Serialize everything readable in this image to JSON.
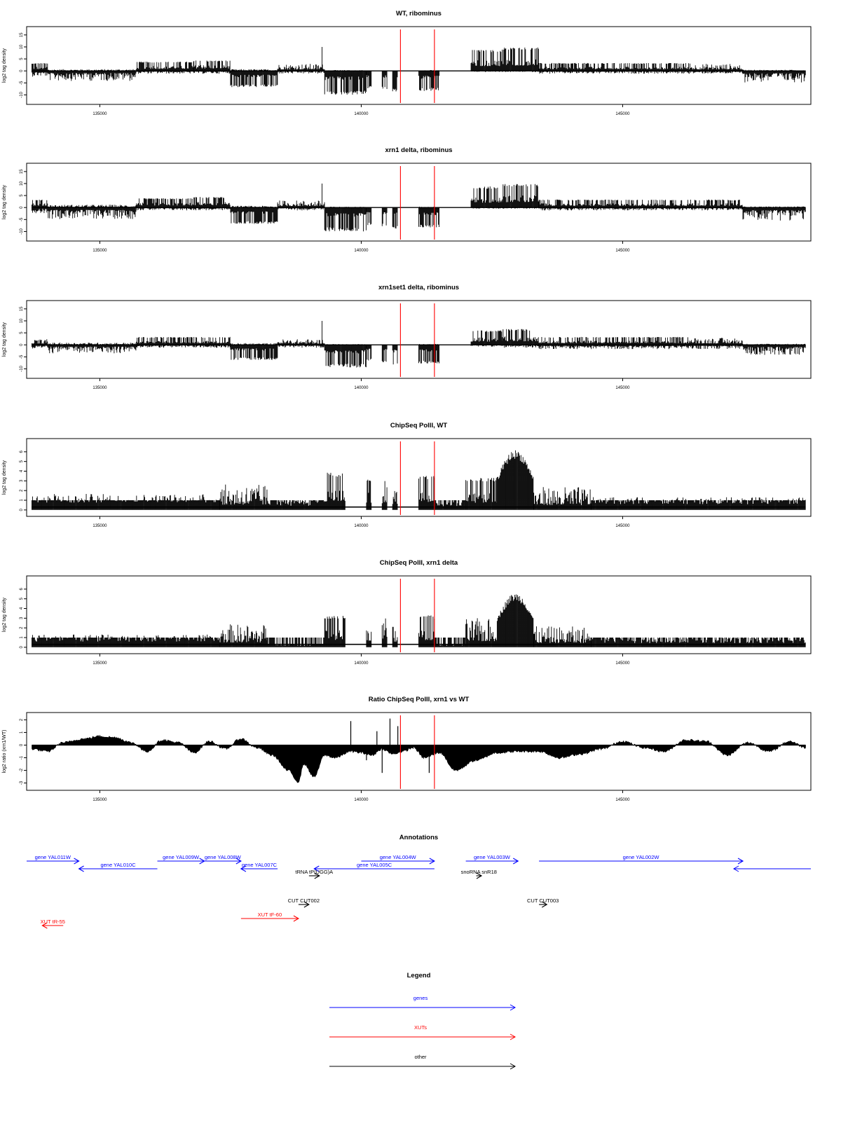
{
  "legend": {
    "title": "Legend",
    "items": [
      {
        "label": "genes",
        "color": "#0000ff"
      },
      {
        "label": "XUTs",
        "color": "#ff0000"
      },
      {
        "label": "other",
        "color": "#000000"
      }
    ]
  },
  "annotations_title": "Annotations",
  "colors": {
    "marker": "#ff0000",
    "trace": "#000000",
    "gene": "#0000ff",
    "xut": "#ff0000",
    "other": "#000000"
  },
  "chart_data": [
    {
      "type": "bar",
      "title": "WT, ribominus",
      "ylabel": "log2 tag density",
      "xticks": [
        135000,
        140000,
        145000
      ],
      "yticks": [
        -10,
        -5,
        0,
        5,
        10,
        15
      ],
      "xlim": [
        133600,
        148600
      ],
      "ylim": [
        -12.5,
        17
      ],
      "markers": [
        140750,
        141400
      ],
      "segments": [
        {
          "x": [
            133700,
            134000
          ],
          "pos": 3,
          "neg": -2
        },
        {
          "x": [
            134000,
            135700
          ],
          "pos": 0.6,
          "neg": -3.5
        },
        {
          "x": [
            135700,
            136800
          ],
          "pos": 3.5,
          "neg": -1
        },
        {
          "x": [
            136800,
            137500
          ],
          "pos": 4,
          "neg": -1
        },
        {
          "x": [
            137500,
            138400
          ],
          "pos": 0.6,
          "neg": -6.5
        },
        {
          "x": [
            138400,
            139300
          ],
          "pos": 2.5,
          "neg": -1,
          "spike": [
            139250,
            10
          ]
        },
        {
          "x": [
            139300,
            140100
          ],
          "pos": 0.3,
          "neg": -9.5
        },
        {
          "x": [
            140100,
            140200
          ],
          "pos": 0,
          "neg": -7
        },
        {
          "x": [
            140400,
            140500
          ],
          "pos": 0,
          "neg": -7.5
        },
        {
          "x": [
            140600,
            140700
          ],
          "pos": 0,
          "neg": -8.5
        },
        {
          "x": [
            141100,
            141500
          ],
          "pos": 0.3,
          "neg": -8
        },
        {
          "x": [
            142100,
            142700
          ],
          "pos": 8,
          "neg": -0.4
        },
        {
          "x": [
            142700,
            143400
          ],
          "pos": 9,
          "neg": -0.4
        },
        {
          "x": [
            143400,
            146300
          ],
          "pos": 3,
          "neg": -1
        },
        {
          "x": [
            146300,
            147300
          ],
          "pos": 2.5,
          "neg": -1
        },
        {
          "x": [
            147300,
            148500
          ],
          "pos": 0.4,
          "neg": -4
        }
      ]
    },
    {
      "type": "bar",
      "title": "xrn1 delta, ribominus",
      "ylabel": "log2 tag density",
      "xticks": [
        135000,
        140000,
        145000
      ],
      "yticks": [
        -10,
        -5,
        0,
        5,
        10,
        15
      ],
      "xlim": [
        133600,
        148600
      ],
      "ylim": [
        -12.5,
        17
      ],
      "markers": [
        140750,
        141400
      ],
      "segments": [
        {
          "x": [
            133700,
            134000
          ],
          "pos": 3,
          "neg": -2
        },
        {
          "x": [
            134000,
            135700
          ],
          "pos": 1,
          "neg": -4
        },
        {
          "x": [
            135700,
            136800
          ],
          "pos": 3.5,
          "neg": -1
        },
        {
          "x": [
            136800,
            137500
          ],
          "pos": 4,
          "neg": -1
        },
        {
          "x": [
            137500,
            138400
          ],
          "pos": 0.6,
          "neg": -6.5
        },
        {
          "x": [
            138400,
            139300
          ],
          "pos": 2.5,
          "neg": -1,
          "spike": [
            139250,
            10
          ]
        },
        {
          "x": [
            139300,
            140100
          ],
          "pos": 0.3,
          "neg": -9.5
        },
        {
          "x": [
            140100,
            140200
          ],
          "pos": 0,
          "neg": -7
        },
        {
          "x": [
            140400,
            140500
          ],
          "pos": 0,
          "neg": -7.5
        },
        {
          "x": [
            140600,
            140700
          ],
          "pos": 0,
          "neg": -8.5
        },
        {
          "x": [
            141100,
            141500
          ],
          "pos": 0.3,
          "neg": -8
        },
        {
          "x": [
            142100,
            142700
          ],
          "pos": 8,
          "neg": -0.4
        },
        {
          "x": [
            142700,
            143400
          ],
          "pos": 9,
          "neg": -0.4
        },
        {
          "x": [
            143400,
            146300
          ],
          "pos": 3,
          "neg": -1
        },
        {
          "x": [
            146300,
            147300
          ],
          "pos": 3,
          "neg": -1
        },
        {
          "x": [
            147300,
            148500
          ],
          "pos": 0.4,
          "neg": -4.5
        }
      ]
    },
    {
      "type": "bar",
      "title": "xrn1set1 delta, ribominus",
      "ylabel": "log2 tag density",
      "xticks": [
        135000,
        140000,
        145000
      ],
      "yticks": [
        -10,
        -5,
        0,
        5,
        10,
        15
      ],
      "xlim": [
        133600,
        148600
      ],
      "ylim": [
        -12.5,
        17
      ],
      "markers": [
        140750,
        141400
      ],
      "segments": [
        {
          "x": [
            133700,
            134000
          ],
          "pos": 2,
          "neg": -1.5
        },
        {
          "x": [
            134000,
            135700
          ],
          "pos": 0.8,
          "neg": -3
        },
        {
          "x": [
            135700,
            136800
          ],
          "pos": 3,
          "neg": -1
        },
        {
          "x": [
            136800,
            137500
          ],
          "pos": 3,
          "neg": -1
        },
        {
          "x": [
            137500,
            138400
          ],
          "pos": 0.6,
          "neg": -6
        },
        {
          "x": [
            138400,
            139300
          ],
          "pos": 2,
          "neg": -1,
          "spike": [
            139250,
            10
          ]
        },
        {
          "x": [
            139300,
            140100
          ],
          "pos": 0.3,
          "neg": -9
        },
        {
          "x": [
            140100,
            140200
          ],
          "pos": 0,
          "neg": -6.5
        },
        {
          "x": [
            140400,
            140500
          ],
          "pos": 0,
          "neg": -7
        },
        {
          "x": [
            140600,
            140700
          ],
          "pos": 0,
          "neg": -8
        },
        {
          "x": [
            141100,
            141500
          ],
          "pos": 0.3,
          "neg": -7.5
        },
        {
          "x": [
            142100,
            142700
          ],
          "pos": 5.5,
          "neg": -0.6
        },
        {
          "x": [
            142700,
            143400
          ],
          "pos": 6,
          "neg": -1
        },
        {
          "x": [
            143400,
            146300
          ],
          "pos": 3,
          "neg": -1.5
        },
        {
          "x": [
            146300,
            147300
          ],
          "pos": 2.5,
          "neg": -1.5
        },
        {
          "x": [
            147300,
            148500
          ],
          "pos": 0.4,
          "neg": -3.5
        }
      ]
    },
    {
      "type": "bar",
      "title": "ChipSeq PolII, WT",
      "ylabel": "log2 tag density",
      "xticks": [
        135000,
        140000,
        145000
      ],
      "yticks": [
        0,
        1,
        2,
        3,
        4,
        5,
        6
      ],
      "xlim": [
        133600,
        148600
      ],
      "ylim": [
        -0.3,
        7
      ],
      "markers": [
        140750,
        141400
      ],
      "segments": [
        {
          "x": [
            133700,
            137300
          ],
          "pos": 1.4,
          "neg": 0
        },
        {
          "x": [
            137300,
            138200
          ],
          "pos": 2.2,
          "neg": 0
        },
        {
          "x": [
            138200,
            139300
          ],
          "pos": 0.8,
          "neg": 0
        },
        {
          "x": [
            139300,
            139700
          ],
          "pos": 3.5,
          "neg": 0
        },
        {
          "x": [
            140100,
            140200
          ],
          "pos": 3,
          "neg": 0
        },
        {
          "x": [
            140400,
            140500
          ],
          "pos": 2.8,
          "neg": 0
        },
        {
          "x": [
            140600,
            140700
          ],
          "pos": 2.2,
          "neg": 0
        },
        {
          "x": [
            141100,
            141400
          ],
          "pos": 3.2,
          "neg": 0
        },
        {
          "x": [
            141400,
            142000
          ],
          "pos": 0.7,
          "neg": 0
        },
        {
          "x": [
            142000,
            142600
          ],
          "pos": 3,
          "neg": 0
        },
        {
          "x": [
            142600,
            143300
          ],
          "pos": 6.2,
          "neg": 0,
          "dome": true
        },
        {
          "x": [
            143300,
            144400
          ],
          "pos": 2,
          "neg": 0
        },
        {
          "x": [
            144400,
            148500
          ],
          "pos": 1.1,
          "neg": 0
        }
      ]
    },
    {
      "type": "bar",
      "title": "ChipSeq PolII, xrn1 delta",
      "ylabel": "log2 tag density",
      "xticks": [
        135000,
        140000,
        145000
      ],
      "yticks": [
        0,
        1,
        2,
        3,
        4,
        5,
        6
      ],
      "xlim": [
        133600,
        148600
      ],
      "ylim": [
        -0.3,
        7
      ],
      "markers": [
        140750,
        141400
      ],
      "segments": [
        {
          "x": [
            133700,
            137300
          ],
          "pos": 1.1,
          "neg": 0
        },
        {
          "x": [
            137300,
            138200
          ],
          "pos": 2,
          "neg": 0
        },
        {
          "x": [
            138200,
            139300
          ],
          "pos": 0.3,
          "neg": 0
        },
        {
          "x": [
            139300,
            139700
          ],
          "pos": 3,
          "neg": 0
        },
        {
          "x": [
            140100,
            140200
          ],
          "pos": 2.7,
          "neg": 0
        },
        {
          "x": [
            140400,
            140500
          ],
          "pos": 2.6,
          "neg": 0
        },
        {
          "x": [
            140600,
            140700
          ],
          "pos": 2,
          "neg": 0
        },
        {
          "x": [
            141100,
            141400
          ],
          "pos": 3,
          "neg": 0
        },
        {
          "x": [
            141400,
            142000
          ],
          "pos": 0.3,
          "neg": 0
        },
        {
          "x": [
            142000,
            142600
          ],
          "pos": 2.5,
          "neg": 0
        },
        {
          "x": [
            142600,
            143300
          ],
          "pos": 5.6,
          "neg": 0,
          "dome": true
        },
        {
          "x": [
            143300,
            144400
          ],
          "pos": 1.8,
          "neg": 0
        },
        {
          "x": [
            144400,
            148500
          ],
          "pos": 0.8,
          "neg": 0
        }
      ]
    },
    {
      "type": "area",
      "title": "Ratio ChipSeq PolII, xrn1 vs WT",
      "ylabel": "log2 ratio (xrn1/WT)",
      "xticks": [
        135000,
        140000,
        145000
      ],
      "yticks": [
        -3,
        -2,
        -1,
        0,
        1,
        2
      ],
      "xlim": [
        133600,
        148600
      ],
      "ylim": [
        -3.3,
        2.3
      ],
      "markers": [
        140750,
        141400
      ],
      "x": [
        133700,
        134000,
        134300,
        134700,
        135000,
        135300,
        135600,
        135900,
        136200,
        136500,
        136800,
        137100,
        137400,
        137700,
        138000,
        138300,
        138600,
        138800,
        138900,
        139100,
        139300,
        139500,
        139800,
        140000,
        140200,
        140400,
        140600,
        140800,
        141000,
        141200,
        141500,
        141800,
        142200,
        142600,
        143000,
        143400,
        143800,
        144200,
        144600,
        145000,
        145400,
        145800,
        146200,
        146600,
        147000,
        147400,
        147800,
        148200,
        148500
      ],
      "y": [
        -0.3,
        -0.5,
        0.2,
        0.5,
        0.7,
        0.6,
        0.2,
        -0.5,
        0.4,
        0.2,
        -0.6,
        0.3,
        -0.3,
        0.5,
        -0.2,
        -0.8,
        -2,
        -2.9,
        -1.5,
        -2.5,
        -0.8,
        -1,
        -0.5,
        -0.6,
        -0.8,
        -0.3,
        -0.7,
        -0.5,
        -0.2,
        -1,
        -0.6,
        -2,
        -1.2,
        -0.6,
        -0.5,
        -0.5,
        -1,
        -0.7,
        -0.3,
        0.3,
        -0.2,
        -0.5,
        0.4,
        0.3,
        -0.8,
        0.2,
        -0.5,
        0.3,
        -0.2
      ],
      "spikes": [
        [
          139800,
          1.9
        ],
        [
          140100,
          -1.2
        ],
        [
          140300,
          1.1
        ],
        [
          140400,
          -2.2
        ],
        [
          140550,
          2.1
        ],
        [
          140700,
          1.5
        ],
        [
          141300,
          -2.2
        ]
      ]
    }
  ],
  "annotations": [
    {
      "label": "YAL011W",
      "prefix": "gene",
      "kind": "gene",
      "dir": "right",
      "x": [
        133500,
        134600
      ],
      "row": 0
    },
    {
      "label": "YAL010C",
      "prefix": "gene",
      "kind": "gene",
      "dir": "left",
      "x": [
        134600,
        136100
      ],
      "row": 1
    },
    {
      "label": "YAL009W",
      "prefix": "gene",
      "kind": "gene",
      "dir": "right",
      "x": [
        136100,
        137000
      ],
      "row": 0
    },
    {
      "label": "YAL008W",
      "prefix": "gene",
      "kind": "gene",
      "dir": "right",
      "x": [
        137000,
        137700
      ],
      "row": 0
    },
    {
      "label": "YAL007C",
      "prefix": "gene",
      "kind": "gene",
      "dir": "left",
      "x": [
        137700,
        138400
      ],
      "row": 1
    },
    {
      "label": "YAL005C",
      "prefix": "gene",
      "kind": "gene",
      "dir": "left",
      "x": [
        139100,
        141400
      ],
      "row": 1
    },
    {
      "label": "YAL004W",
      "prefix": "gene",
      "kind": "gene",
      "dir": "right",
      "x": [
        140000,
        141400
      ],
      "row": 0
    },
    {
      "label": "YAL003W",
      "prefix": "gene",
      "kind": "gene",
      "dir": "right",
      "x": [
        142000,
        143000
      ],
      "row": 0
    },
    {
      "label": "YAL002W",
      "prefix": "gene",
      "kind": "gene",
      "dir": "right",
      "x": [
        143400,
        147300
      ],
      "row": 0
    },
    {
      "label": "tP(UGG)A",
      "prefix": "tRNA",
      "kind": "other",
      "dir": "right",
      "x": [
        139000,
        139200
      ],
      "row": 2
    },
    {
      "label": "snR18",
      "prefix": "snoRNA",
      "kind": "other",
      "dir": "right",
      "x": [
        142200,
        142300
      ],
      "row": 2
    },
    {
      "label": "CUT002",
      "prefix": "CUT",
      "kind": "other",
      "dir": "right",
      "x": [
        138800,
        139000
      ],
      "row": 3
    },
    {
      "label": "CUT003",
      "prefix": "CUT",
      "kind": "other",
      "dir": "right",
      "x": [
        143400,
        143550
      ],
      "row": 3
    },
    {
      "label": "tF-60",
      "prefix": "XUT",
      "kind": "xut",
      "dir": "right",
      "x": [
        137700,
        138800
      ],
      "row": 4
    },
    {
      "label": "tR-55",
      "prefix": "XUT",
      "kind": "xut",
      "dir": "left",
      "x": [
        133900,
        134300
      ],
      "row": 5
    }
  ]
}
